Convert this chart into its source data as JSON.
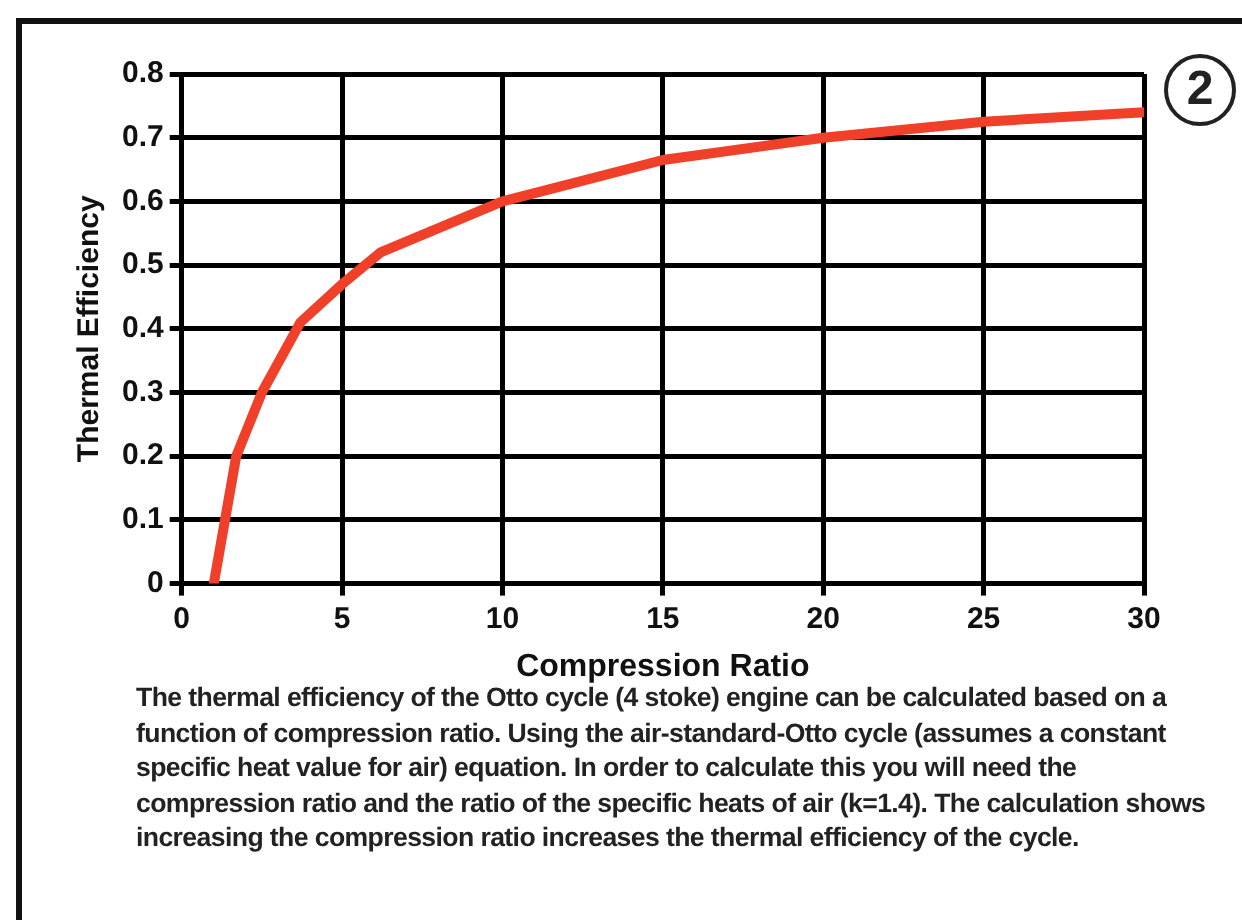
{
  "chart_data": {
    "type": "line",
    "xlabel": "Compression Ratio",
    "ylabel": "Thermal Efficiency",
    "x": [
      1,
      1.7,
      2.5,
      3.7,
      5,
      6.2,
      10,
      15,
      20,
      25,
      30
    ],
    "series": [
      {
        "color": "#f0402a",
        "values": [
          0,
          0.2,
          0.3,
          0.41,
          0.47,
          0.52,
          0.6,
          0.665,
          0.7,
          0.725,
          0.74
        ]
      }
    ],
    "xlim": [
      0,
      30
    ],
    "xticks": [
      0,
      5,
      10,
      15,
      20,
      25,
      30
    ],
    "ylim": [
      0,
      0.8
    ],
    "yticks": [
      0,
      0.1,
      0.2,
      0.3,
      0.4,
      0.5,
      0.6,
      0.7,
      0.8
    ],
    "grid": true,
    "legend": false,
    "marker": "none",
    "line_style": "solid",
    "annotations": [
      "2",
      "The thermal efficiency of the Otto cycle (4 stoke) engine can be calculated based on a function of compression ratio. Using the air-standard-Otto cycle (assumes a constant specific heat value for air) equation. In order to calculate this you will need the compression ratio and the ratio of the specific heats of air (k=1.4). The calculation shows increasing the compression ratio increases the thermal efficiency of the cycle."
    ]
  }
}
